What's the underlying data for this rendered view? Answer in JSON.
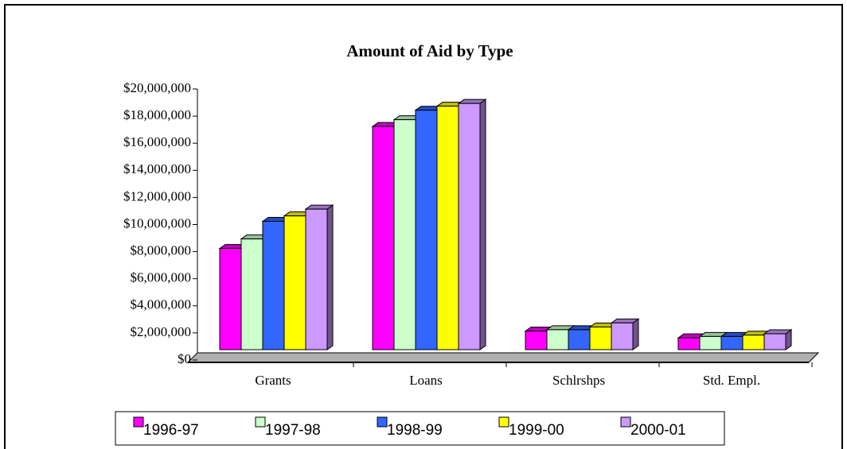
{
  "chart_data": {
    "type": "bar3d",
    "title": "Amount of Aid by Type",
    "categories": [
      "Grants",
      "Loans",
      "Schlrshps",
      "Std. Empl."
    ],
    "series": [
      {
        "name": "1996-97",
        "color": "#ff00ff",
        "values": [
          8000000,
          17000000,
          1900000,
          1400000
        ]
      },
      {
        "name": "1997-98",
        "color": "#ccffcc",
        "values": [
          8700000,
          17500000,
          2000000,
          1500000
        ]
      },
      {
        "name": "1998-99",
        "color": "#3366ff",
        "values": [
          10000000,
          18200000,
          2000000,
          1500000
        ]
      },
      {
        "name": "1999-00",
        "color": "#ffff00",
        "values": [
          10400000,
          18500000,
          2200000,
          1600000
        ]
      },
      {
        "name": "2000-01",
        "color": "#cc99ff",
        "values": [
          10900000,
          18700000,
          2500000,
          1700000
        ]
      }
    ],
    "ylim": [
      0,
      20000000
    ],
    "yticks": [
      {
        "value": 0,
        "label": "$0"
      },
      {
        "value": 2000000,
        "label": "$2,000,000"
      },
      {
        "value": 4000000,
        "label": "$4,000,000"
      },
      {
        "value": 6000000,
        "label": "$6,000,000"
      },
      {
        "value": 8000000,
        "label": "$8,000,000"
      },
      {
        "value": 10000000,
        "label": "$10,000,000"
      },
      {
        "value": 12000000,
        "label": "$12,000,000"
      },
      {
        "value": 14000000,
        "label": "$14,000,000"
      },
      {
        "value": 16000000,
        "label": "$16,000,000"
      },
      {
        "value": 18000000,
        "label": "$18,000,000"
      },
      {
        "value": 20000000,
        "label": "$20,000,000"
      }
    ],
    "legend": "bottom"
  }
}
